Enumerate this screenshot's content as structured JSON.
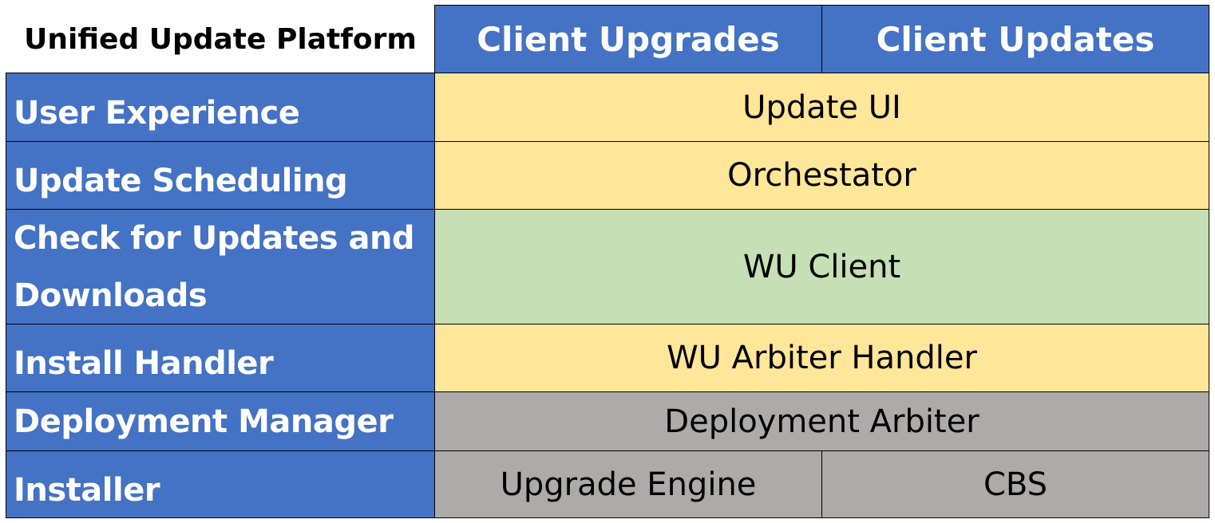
{
  "title": "Unified Update Platform",
  "columns": [
    "Client Upgrades",
    "Client Updates"
  ],
  "rows": [
    {
      "label": "User Experience",
      "cells": [
        "Update UI"
      ]
    },
    {
      "label": "Update Scheduling",
      "cells": [
        "Orchestator"
      ]
    },
    {
      "label": "Check for Updates and Downloads",
      "cells": [
        "WU Client"
      ]
    },
    {
      "label": "Install Handler",
      "cells": [
        "WU Arbiter Handler"
      ]
    },
    {
      "label": "Deployment Manager",
      "cells": [
        "Deployment Arbiter"
      ]
    },
    {
      "label": "Installer",
      "cells": [
        "Upgrade Engine",
        "CBS"
      ]
    }
  ],
  "colors": {
    "header": "#4472C4",
    "yellow": "#FFE699",
    "green": "#C5E0B4",
    "gray": "#AEAAAA"
  }
}
